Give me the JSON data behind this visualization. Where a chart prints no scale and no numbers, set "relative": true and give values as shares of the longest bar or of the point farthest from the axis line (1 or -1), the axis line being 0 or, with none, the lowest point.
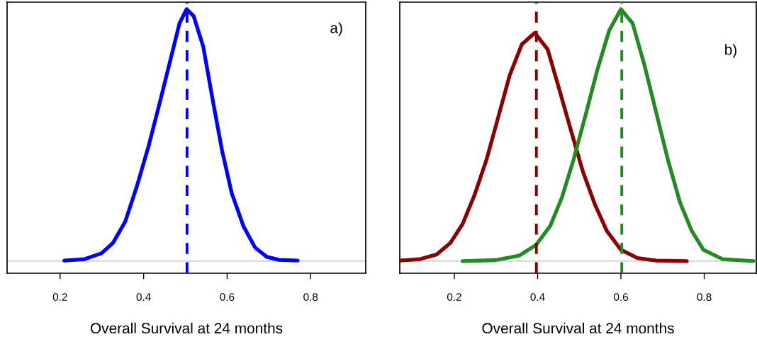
{
  "chart_data": [
    {
      "type": "line",
      "relative": true,
      "xlabel": "Overall Survival at 24 months",
      "annotations": [
        "a)"
      ],
      "xlim": [
        0.073,
        0.932
      ],
      "xticks": [
        0.2,
        0.4,
        0.6,
        0.8
      ],
      "tick_labels": "x",
      "grid": false,
      "line_style": "solid",
      "series": [
        {
          "color": "#0000ff",
          "x": [
            0.21,
            0.259,
            0.299,
            0.327,
            0.356,
            0.384,
            0.412,
            0.441,
            0.469,
            0.486,
            0.503,
            0.52,
            0.543,
            0.565,
            0.588,
            0.611,
            0.639,
            0.667,
            0.695,
            0.724,
            0.769
          ],
          "values": [
            0.002,
            0.008,
            0.031,
            0.073,
            0.157,
            0.298,
            0.457,
            0.644,
            0.831,
            0.944,
            1.0,
            0.972,
            0.85,
            0.644,
            0.438,
            0.27,
            0.139,
            0.054,
            0.017,
            0.005,
            0.002
          ]
        }
      ],
      "ref_lines": [
        {
          "axis": "y",
          "value": 0,
          "color": "#bebebe",
          "line_style": "solid"
        },
        {
          "axis": "x",
          "value": 0.504,
          "color": "#0000ff",
          "line_style": "dashed"
        }
      ]
    },
    {
      "type": "line",
      "relative": true,
      "xlabel": "Overall Survival at 24 months",
      "annotations": [
        "b)"
      ],
      "xlim": [
        0.069,
        0.925
      ],
      "xticks": [
        0.2,
        0.4,
        0.6,
        0.8
      ],
      "tick_labels": "x",
      "grid": false,
      "line_style": "solid",
      "series": [
        {
          "color": "#8b0000",
          "x": [
            0.069,
            0.118,
            0.157,
            0.191,
            0.22,
            0.248,
            0.277,
            0.305,
            0.333,
            0.362,
            0.393,
            0.424,
            0.452,
            0.481,
            0.509,
            0.538,
            0.566,
            0.6,
            0.64,
            0.685,
            0.758
          ],
          "values": [
            0.002,
            0.008,
            0.026,
            0.073,
            0.148,
            0.26,
            0.401,
            0.569,
            0.738,
            0.86,
            0.906,
            0.841,
            0.682,
            0.513,
            0.354,
            0.223,
            0.12,
            0.045,
            0.012,
            0.002,
            0.0
          ]
        },
        {
          "color": "#228b22",
          "x": [
            0.22,
            0.299,
            0.356,
            0.396,
            0.43,
            0.458,
            0.486,
            0.515,
            0.543,
            0.572,
            0.6,
            0.628,
            0.657,
            0.685,
            0.713,
            0.742,
            0.77,
            0.798,
            0.844,
            0.918
          ],
          "values": [
            0.0,
            0.004,
            0.022,
            0.064,
            0.139,
            0.251,
            0.401,
            0.579,
            0.757,
            0.916,
            1.0,
            0.944,
            0.775,
            0.588,
            0.401,
            0.232,
            0.12,
            0.045,
            0.008,
            0.0
          ]
        }
      ],
      "ref_lines": [
        {
          "axis": "y",
          "value": 0,
          "color": "#bebebe",
          "line_style": "solid"
        },
        {
          "axis": "x",
          "value": 0.397,
          "color": "#8b0000",
          "line_style": "dashed"
        },
        {
          "axis": "x",
          "value": 0.602,
          "color": "#228b22",
          "line_style": "dashed"
        }
      ]
    }
  ]
}
